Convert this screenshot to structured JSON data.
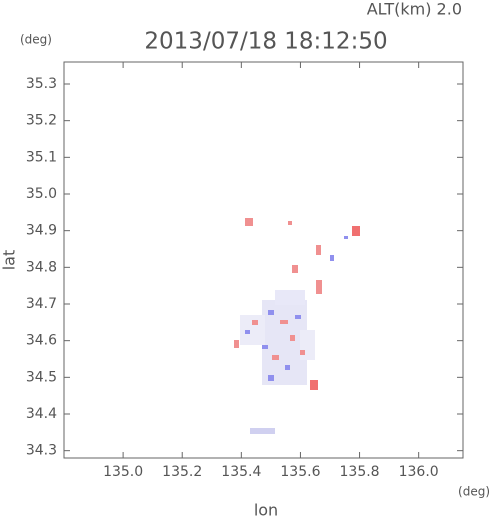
{
  "chart_data": {
    "type": "map",
    "title": "2013/07/18 18:12:50",
    "altitude_label": "ALT(km) 2.0",
    "y_unit": "(deg)",
    "x_unit": "(deg)",
    "x_label": "lon",
    "y_label": "lat",
    "xlim": [
      134.8,
      136.15
    ],
    "ylim": [
      34.28,
      35.36
    ],
    "xticks": [
      {
        "value": 135.0,
        "label": "135.0"
      },
      135.2,
      135.4,
      135.6,
      135.8,
      {
        "value": 136.0,
        "label": "136.0"
      }
    ],
    "yticks": [
      34.3,
      34.4,
      34.5,
      34.6,
      34.7,
      34.8,
      34.9,
      {
        "value": 35.0,
        "label": "35.0"
      },
      35.1,
      35.2,
      35.3
    ],
    "grid": false
  }
}
